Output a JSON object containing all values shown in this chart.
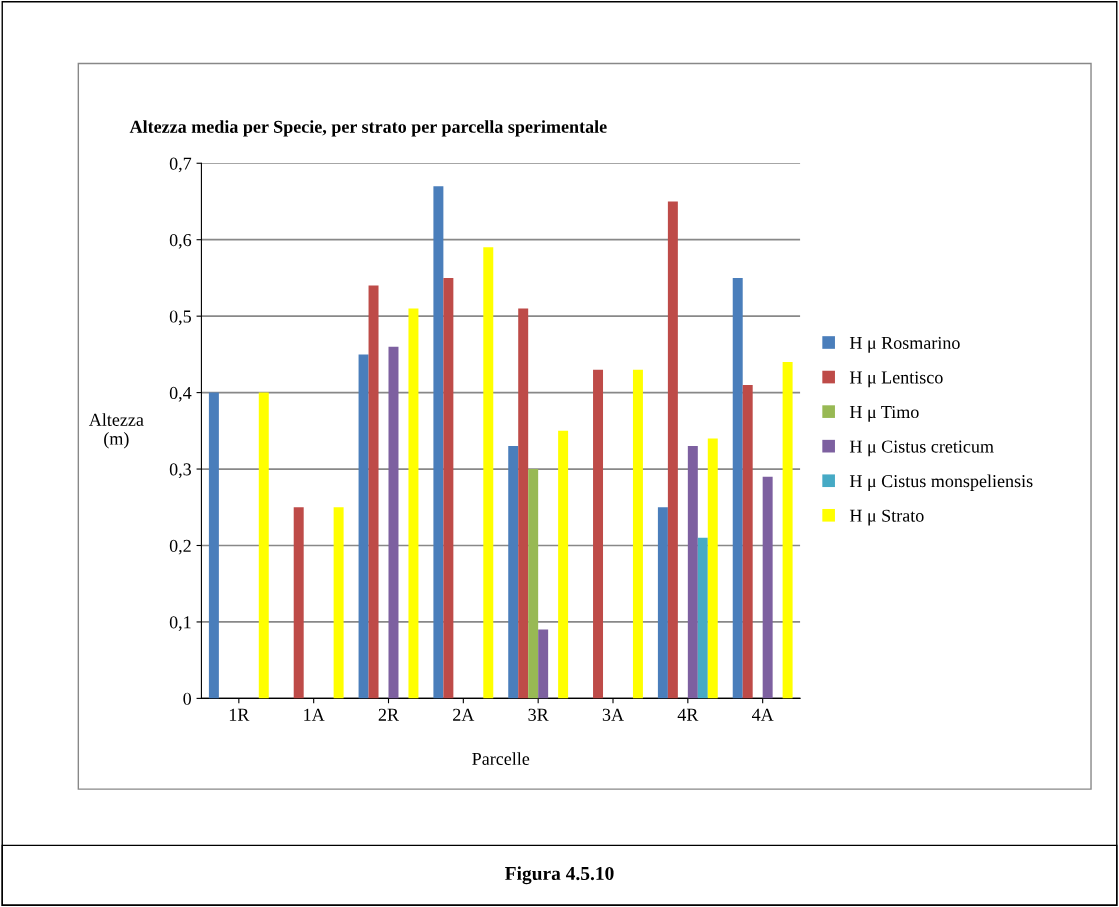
{
  "chart_data": {
    "type": "bar",
    "title": "Altezza media per Specie, per strato per parcella sperimentale",
    "xlabel": "Parcelle",
    "ylabel": "Altezza\n(m)",
    "categories": [
      "1R",
      "1A",
      "2R",
      "2A",
      "3R",
      "3A",
      "4R",
      "4A"
    ],
    "series": [
      {
        "name": "H μ Rosmarino",
        "color": "#4a7ebb",
        "values": [
          0.4,
          null,
          0.45,
          0.67,
          0.33,
          null,
          0.25,
          0.55
        ]
      },
      {
        "name": "H μ Lentisco",
        "color": "#be4b48",
        "values": [
          null,
          0.25,
          0.54,
          0.55,
          0.51,
          0.43,
          0.65,
          0.41
        ]
      },
      {
        "name": "H μ Timo",
        "color": "#98b954",
        "values": [
          null,
          null,
          null,
          null,
          0.3,
          null,
          null,
          null
        ]
      },
      {
        "name": "H μ Cistus creticum",
        "color": "#7d60a0",
        "values": [
          null,
          null,
          0.46,
          null,
          0.09,
          null,
          0.33,
          0.29
        ]
      },
      {
        "name": "H μ Cistus monspeliensis",
        "color": "#46aac5",
        "values": [
          null,
          null,
          null,
          null,
          null,
          null,
          0.21,
          null
        ]
      },
      {
        "name": "H μ Strato",
        "color": "#ffff00",
        "values": [
          0.4,
          0.25,
          0.51,
          0.59,
          0.35,
          0.43,
          0.34,
          0.44
        ]
      }
    ],
    "ylim": [
      0,
      0.7
    ],
    "yticks": [
      {
        "value": 0,
        "label": "0"
      },
      {
        "value": 0.1,
        "label": "0,1"
      },
      {
        "value": 0.2,
        "label": "0,2"
      },
      {
        "value": 0.3,
        "label": "0,3"
      },
      {
        "value": 0.4,
        "label": "0,4"
      },
      {
        "value": 0.5,
        "label": "0,5"
      },
      {
        "value": 0.6,
        "label": "0,6"
      },
      {
        "value": 0.7,
        "label": "0,7"
      }
    ],
    "grid": "y",
    "legend": "right",
    "annotations": [
      "Figura 4.5.10"
    ]
  }
}
